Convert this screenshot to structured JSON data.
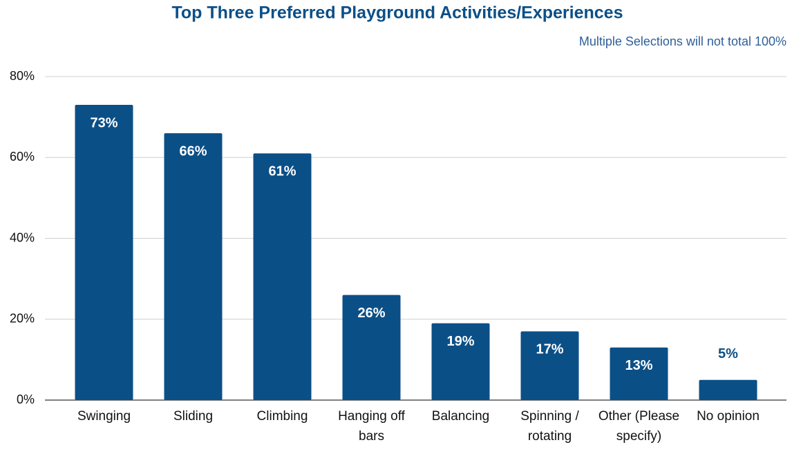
{
  "chart_data": {
    "type": "bar",
    "title": "Top Three Preferred Playground Activities/Experiences",
    "subtitle": "Multiple Selections will not total 100%",
    "categories": [
      "Swinging",
      "Sliding",
      "Climbing",
      "Hanging off bars",
      "Balancing",
      "Spinning / rotating",
      "Other (Please specify)",
      "No opinion"
    ],
    "values": [
      73,
      66,
      61,
      26,
      19,
      17,
      13,
      5
    ],
    "value_labels": [
      "73%",
      "66%",
      "61%",
      "26%",
      "19%",
      "17%",
      "13%",
      "5%"
    ],
    "color": "#0b4f87",
    "ylim": [
      0,
      80
    ],
    "yticks": [
      {
        "value": 0,
        "label": "0%"
      },
      {
        "value": 20,
        "label": "20%"
      },
      {
        "value": 40,
        "label": "40%"
      },
      {
        "value": 60,
        "label": "60%"
      },
      {
        "value": 80,
        "label": "80%"
      }
    ],
    "grid": true
  }
}
